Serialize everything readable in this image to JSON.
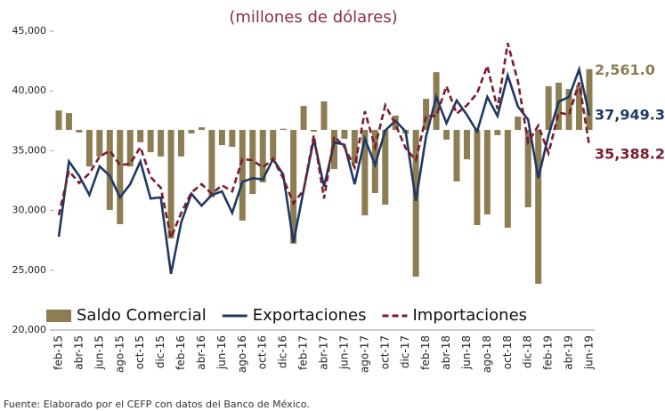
{
  "chart_data": {
    "type": "bar-line",
    "title": "(millones  de dólares)",
    "source": "Fuente: Elaborado por el CEFP con datos del Banco de México.",
    "categories": [
      "feb-15",
      null,
      "abr-15",
      null,
      "jun-15",
      null,
      "ago-15",
      null,
      "oct-15",
      null,
      "dic-15",
      null,
      "feb-16",
      null,
      "abr-16",
      null,
      "jun-16",
      null,
      "ago-16",
      null,
      "oct-16",
      null,
      "dic-16",
      null,
      "feb-17",
      null,
      "abr-17",
      null,
      "jun-17",
      null,
      "ago-17",
      null,
      "oct-17",
      null,
      "dic-17",
      null,
      "feb-18",
      null,
      "abr-18",
      null,
      "jun-18",
      null,
      "ago-18",
      null,
      "oct-18",
      null,
      "dic-18",
      null,
      "feb-19",
      null,
      "abr-19",
      null,
      "jun-19"
    ],
    "ylim": [
      20000,
      45000
    ],
    "yticks": [
      {
        "value": 20000,
        "label": "20,000"
      },
      {
        "value": 25000,
        "label": "25,000"
      },
      {
        "value": 30000,
        "label": "30,000"
      },
      {
        "value": 35000,
        "label": "35,000"
      },
      {
        "value": 40000,
        "label": "40,000"
      },
      {
        "value": 45000,
        "label": "45,000"
      }
    ],
    "y2lim": [
      -8430,
      4160
    ],
    "series": [
      {
        "name": "Saldo Comercial",
        "type": "bar",
        "axis": "y2",
        "color": "#8c7e52",
        "values": [
          820,
          710,
          -110,
          -1540,
          -1120,
          -3370,
          -3970,
          -1540,
          -520,
          -940,
          -1120,
          -4570,
          -1120,
          -150,
          110,
          -2840,
          -640,
          -710,
          -3820,
          -2700,
          -2210,
          -1270,
          50,
          -4790,
          1010,
          -70,
          1200,
          -1650,
          -370,
          -1420,
          -3600,
          -2660,
          -3150,
          600,
          -150,
          -6180,
          1310,
          2430,
          -410,
          -2170,
          -1240,
          -4010,
          -3560,
          -220,
          -4120,
          560,
          -3260,
          -6480,
          1840,
          1990,
          1720,
          1870,
          2561.0
        ],
        "value_labels": [
          null,
          null,
          null,
          null,
          null,
          null,
          null,
          null,
          null,
          null,
          null,
          null,
          null,
          null,
          null,
          null,
          null,
          null,
          null,
          null,
          null,
          null,
          null,
          null,
          null,
          null,
          null,
          null,
          null,
          null,
          null,
          null,
          null,
          null,
          null,
          null,
          null,
          null,
          null,
          null,
          null,
          null,
          null,
          null,
          null,
          null,
          null,
          null,
          null,
          null,
          null,
          null,
          "2,561.0"
        ]
      },
      {
        "name": "Exportaciones",
        "type": "line",
        "color": "#1f3864",
        "line_style": "solid",
        "values": [
          27800,
          34100,
          32900,
          31300,
          33700,
          32900,
          31100,
          32200,
          34100,
          31000,
          31100,
          24700,
          29000,
          31400,
          30400,
          31300,
          31600,
          29800,
          32400,
          32700,
          32600,
          34300,
          33000,
          27300,
          31700,
          36000,
          32000,
          35700,
          35500,
          32200,
          36000,
          33800,
          36700,
          37500,
          36600,
          30800,
          36200,
          39500,
          37300,
          39200,
          38000,
          36600,
          39500,
          37900,
          41300,
          38700,
          37600,
          32700,
          36300,
          39100,
          39500,
          41800,
          37949.3
        ],
        "value_labels": [
          null,
          null,
          null,
          null,
          null,
          null,
          null,
          null,
          null,
          null,
          null,
          null,
          null,
          null,
          null,
          null,
          null,
          null,
          null,
          null,
          null,
          null,
          null,
          null,
          null,
          null,
          null,
          null,
          null,
          null,
          null,
          null,
          null,
          null,
          null,
          null,
          null,
          null,
          null,
          null,
          null,
          null,
          null,
          null,
          null,
          null,
          null,
          null,
          null,
          null,
          null,
          null,
          "37,949.3"
        ]
      },
      {
        "name": "Importaciones",
        "type": "line",
        "color": "#7b1c2e",
        "line_style": "dashed",
        "values": [
          29600,
          33300,
          32300,
          33100,
          34500,
          35000,
          33800,
          33900,
          35300,
          32800,
          31900,
          27700,
          29800,
          31500,
          32200,
          31400,
          32100,
          31600,
          34300,
          34200,
          33600,
          34300,
          32700,
          30600,
          31700,
          36300,
          31000,
          36200,
          35300,
          33600,
          38300,
          35300,
          38800,
          37200,
          35200,
          34200,
          37900,
          37900,
          40400,
          38100,
          38800,
          39800,
          42100,
          38500,
          44000,
          40800,
          35700,
          37100,
          34800,
          38200,
          38000,
          40700,
          35388.2
        ],
        "value_labels": [
          null,
          null,
          null,
          null,
          null,
          null,
          null,
          null,
          null,
          null,
          null,
          null,
          null,
          null,
          null,
          null,
          null,
          null,
          null,
          null,
          null,
          null,
          null,
          null,
          null,
          null,
          null,
          null,
          null,
          null,
          null,
          null,
          null,
          null,
          null,
          null,
          null,
          null,
          null,
          null,
          null,
          null,
          null,
          null,
          null,
          null,
          null,
          null,
          null,
          null,
          null,
          null,
          "35,388.2"
        ]
      }
    ],
    "legend": "bottom-inside"
  }
}
